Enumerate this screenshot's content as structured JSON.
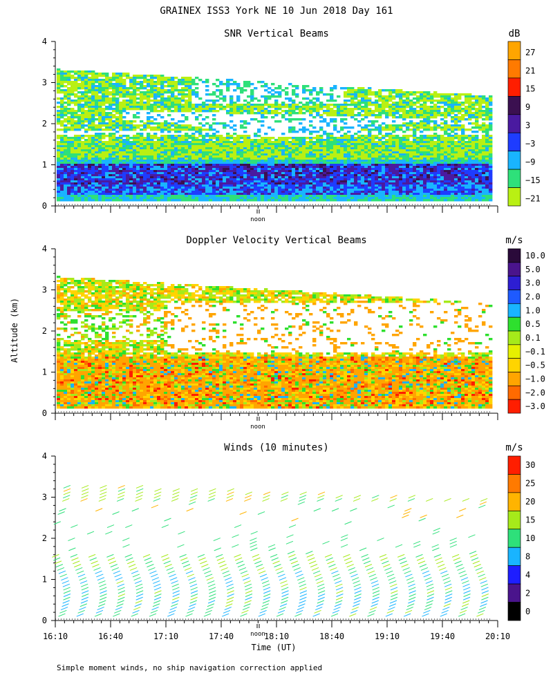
{
  "figure": {
    "title": "GRAINEX ISS3 York NE  10 Jun 2018 Day 161",
    "ylabel": "Altitude (km)",
    "xlabel": "Time (UT)",
    "footnote": "Simple moment winds, no ship navigation correction applied",
    "noon_marker": "noon"
  },
  "chart_data": [
    {
      "type": "heatmap",
      "title": "SNR Vertical Beams",
      "colorbar_unit": "dB",
      "ylim": [
        0,
        4
      ],
      "yticks": [
        "0",
        "1",
        "2",
        "3",
        "4"
      ],
      "colorbar_labels": [
        "27",
        "21",
        "15",
        "9",
        "3",
        "−3",
        "−9",
        "−15",
        "−21"
      ],
      "colorbar_colors": [
        "#ffa500",
        "#ff7a00",
        "#ff1e00",
        "#3b1050",
        "#4a1aa0",
        "#1e3cff",
        "#19b4ff",
        "#2ee07a",
        "#b9f013"
      ],
      "layers": [
        {
          "altitude_km": [
            0.1,
            0.25
          ],
          "dominant": "-9 dB"
        },
        {
          "altitude_km": [
            0.25,
            1.1
          ],
          "dominant": "3 to 9 dB"
        },
        {
          "altitude_km": [
            1.1,
            1.6
          ],
          "dominant": "-15 to -21 dB"
        },
        {
          "altitude_km": [
            1.6,
            3.3
          ],
          "dominant": "-21 dB, patchy"
        }
      ]
    },
    {
      "type": "heatmap",
      "title": "Doppler Velocity Vertical Beams",
      "colorbar_unit": "m/s",
      "ylim": [
        0,
        4
      ],
      "yticks": [
        "0",
        "1",
        "2",
        "3",
        "4"
      ],
      "colorbar_labels": [
        "10.0",
        "5.0",
        "3.0",
        "2.0",
        "1.0",
        "0.5",
        "0.1",
        "−0.1",
        "−0.5",
        "−1.0",
        "−2.0",
        "−3.0"
      ],
      "colorbar_colors": [
        "#2a0a3a",
        "#4a148c",
        "#2d1ed2",
        "#1e5aff",
        "#19b4ff",
        "#2ee02e",
        "#a6ea1a",
        "#e6f000",
        "#ffd400",
        "#ffa500",
        "#ff6a00",
        "#ff1e00"
      ],
      "layers": [
        {
          "altitude_km": [
            0.1,
            1.4
          ],
          "dominant": "-0.5 to -1.0 m/s"
        },
        {
          "altitude_km": [
            1.4,
            3.3
          ],
          "dominant": "-0.1 to 0.1 m/s, patchy"
        }
      ]
    },
    {
      "type": "barbs",
      "title": "Winds (10 minutes)",
      "colorbar_unit": "m/s",
      "ylim": [
        0,
        4
      ],
      "yticks": [
        "0",
        "1",
        "2",
        "3",
        "4"
      ],
      "colorbar_labels": [
        "30",
        "25",
        "20",
        "15",
        "10",
        "8",
        "4",
        "2",
        "0"
      ],
      "colorbar_colors": [
        "#ff1e00",
        "#ff7a00",
        "#ffb400",
        "#a6ea1a",
        "#2ee07a",
        "#19b4ff",
        "#1e1eff",
        "#4a148c",
        "#000000"
      ],
      "x_ticklabels": [
        "16:10",
        "16:40",
        "17:10",
        "17:40",
        "18:10",
        "18:40",
        "19:10",
        "19:40",
        "20:10"
      ],
      "profiles": 24,
      "speed_range_ms": [
        8,
        20
      ]
    }
  ]
}
